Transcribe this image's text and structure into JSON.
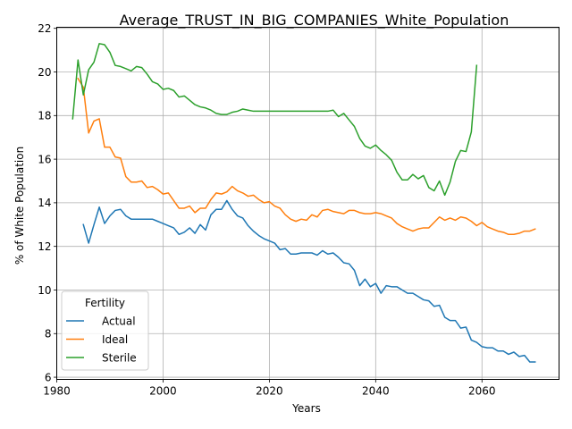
{
  "chart_data": {
    "type": "line",
    "title": "Average_TRUST_IN_BIG_COMPANIES_White_Population",
    "xlabel": "Years",
    "ylabel": "% of White Population",
    "xlim": [
      1980,
      2074.5
    ],
    "ylim": [
      5.9,
      22.05
    ],
    "xticks": [
      1980,
      2000,
      2020,
      2040,
      2060
    ],
    "yticks": [
      6,
      8,
      10,
      12,
      14,
      16,
      18,
      20,
      22
    ],
    "grid": true,
    "legend": {
      "title": "Fertility",
      "placement": "lower-left",
      "entries": [
        "Actual",
        "Ideal",
        "Sterile"
      ]
    },
    "series": [
      {
        "name": "Actual",
        "color": "#1f77b4",
        "x": [
          1985,
          1986,
          1987,
          1988,
          1989,
          1990,
          1991,
          1992,
          1993,
          1994,
          1995,
          1996,
          1997,
          1998,
          1999,
          2000,
          2001,
          2002,
          2003,
          2004,
          2005,
          2006,
          2007,
          2008,
          2009,
          2010,
          2011,
          2012,
          2013,
          2014,
          2015,
          2016,
          2017,
          2018,
          2019,
          2020,
          2021,
          2022,
          2023,
          2024,
          2025,
          2026,
          2027,
          2028,
          2029,
          2030,
          2031,
          2032,
          2033,
          2034,
          2035,
          2036,
          2037,
          2038,
          2039,
          2040,
          2041,
          2042,
          2043,
          2044,
          2045,
          2046,
          2047,
          2048,
          2049,
          2050,
          2051,
          2052,
          2053,
          2054,
          2055,
          2056,
          2057,
          2058,
          2059,
          2060,
          2061,
          2062,
          2063,
          2064,
          2065,
          2066,
          2067,
          2068,
          2069,
          2070
        ],
        "values": [
          13.0,
          12.15,
          13.0,
          13.8,
          13.05,
          13.4,
          13.65,
          13.7,
          13.4,
          13.25,
          13.25,
          13.25,
          13.25,
          13.25,
          13.15,
          13.05,
          12.95,
          12.85,
          12.55,
          12.65,
          12.85,
          12.6,
          13.0,
          12.75,
          13.45,
          13.7,
          13.7,
          14.1,
          13.7,
          13.4,
          13.3,
          12.95,
          12.7,
          12.5,
          12.35,
          12.25,
          12.15,
          11.85,
          11.9,
          11.65,
          11.65,
          11.7,
          11.7,
          11.7,
          11.6,
          11.8,
          11.65,
          11.7,
          11.5,
          11.25,
          11.2,
          10.9,
          10.2,
          10.5,
          10.15,
          10.3,
          9.85,
          10.2,
          10.15,
          10.15,
          10.0,
          9.85,
          9.85,
          9.7,
          9.55,
          9.5,
          9.25,
          9.3,
          8.75,
          8.6,
          8.6,
          8.25,
          8.3,
          7.7,
          7.6,
          7.4,
          7.35,
          7.35,
          7.2,
          7.2,
          7.05,
          7.15,
          6.95,
          7.0,
          6.7,
          6.7
        ]
      },
      {
        "name": "Ideal",
        "color": "#ff7f0e",
        "x": [
          1984,
          1985,
          1986,
          1987,
          1988,
          1989,
          1990,
          1991,
          1992,
          1993,
          1994,
          1995,
          1996,
          1997,
          1998,
          1999,
          2000,
          2001,
          2002,
          2003,
          2004,
          2005,
          2006,
          2007,
          2008,
          2009,
          2010,
          2011,
          2012,
          2013,
          2014,
          2015,
          2016,
          2017,
          2018,
          2019,
          2020,
          2021,
          2022,
          2023,
          2024,
          2025,
          2026,
          2027,
          2028,
          2029,
          2030,
          2031,
          2032,
          2033,
          2034,
          2035,
          2036,
          2037,
          2038,
          2039,
          2040,
          2041,
          2042,
          2043,
          2044,
          2045,
          2046,
          2047,
          2048,
          2049,
          2050,
          2051,
          2052,
          2053,
          2054,
          2055,
          2056,
          2057,
          2058,
          2059,
          2060,
          2061,
          2062,
          2063,
          2064,
          2065,
          2066,
          2067,
          2068,
          2069,
          2070
        ],
        "values": [
          19.7,
          19.3,
          17.2,
          17.75,
          17.85,
          16.55,
          16.55,
          16.1,
          16.05,
          15.2,
          14.95,
          14.95,
          15.0,
          14.7,
          14.75,
          14.6,
          14.4,
          14.45,
          14.1,
          13.75,
          13.75,
          13.85,
          13.55,
          13.75,
          13.75,
          14.15,
          14.45,
          14.4,
          14.5,
          14.75,
          14.55,
          14.45,
          14.3,
          14.35,
          14.15,
          14.0,
          14.05,
          13.85,
          13.75,
          13.45,
          13.25,
          13.15,
          13.25,
          13.2,
          13.45,
          13.35,
          13.65,
          13.7,
          13.6,
          13.55,
          13.5,
          13.65,
          13.65,
          13.55,
          13.5,
          13.5,
          13.55,
          13.5,
          13.4,
          13.3,
          13.05,
          12.9,
          12.8,
          12.7,
          12.8,
          12.85,
          12.85,
          13.1,
          13.35,
          13.2,
          13.3,
          13.2,
          13.35,
          13.3,
          13.15,
          12.95,
          13.1,
          12.9,
          12.8,
          12.7,
          12.65,
          12.55,
          12.55,
          12.6,
          12.7,
          12.7,
          12.8
        ]
      },
      {
        "name": "Sterile",
        "color": "#2ca02c",
        "x": [
          1983,
          1984,
          1985,
          1986,
          1987,
          1988,
          1989,
          1990,
          1991,
          1992,
          1993,
          1994,
          1995,
          1996,
          1997,
          1998,
          1999,
          2000,
          2001,
          2002,
          2003,
          2004,
          2005,
          2006,
          2007,
          2008,
          2009,
          2010,
          2011,
          2012,
          2013,
          2014,
          2015,
          2016,
          2017,
          2018,
          2019,
          2020,
          2021,
          2022,
          2023,
          2024,
          2025,
          2026,
          2027,
          2028,
          2029,
          2030,
          2031,
          2032,
          2033,
          2034,
          2035,
          2036,
          2037,
          2038,
          2039,
          2040,
          2041,
          2042,
          2043,
          2044,
          2045,
          2046,
          2047,
          2048,
          2049,
          2050,
          2051,
          2052,
          2053,
          2054,
          2055,
          2056,
          2057,
          2058,
          2059
        ],
        "values": [
          17.85,
          20.55,
          18.95,
          20.1,
          20.45,
          21.3,
          21.25,
          20.9,
          20.3,
          20.25,
          20.15,
          20.05,
          20.25,
          20.2,
          19.9,
          19.55,
          19.45,
          19.2,
          19.25,
          19.15,
          18.85,
          18.9,
          18.7,
          18.5,
          18.4,
          18.35,
          18.25,
          18.1,
          18.05,
          18.05,
          18.15,
          18.2,
          18.3,
          18.25,
          18.2,
          18.2,
          18.2,
          18.2,
          18.2,
          18.2,
          18.2,
          18.2,
          18.2,
          18.2,
          18.2,
          18.2,
          18.2,
          18.2,
          18.2,
          18.25,
          17.95,
          18.1,
          17.8,
          17.5,
          16.95,
          16.6,
          16.5,
          16.65,
          16.4,
          16.2,
          15.95,
          15.4,
          15.05,
          15.05,
          15.3,
          15.1,
          15.25,
          14.7,
          14.55,
          15.0,
          14.35,
          14.95,
          15.9,
          16.4,
          16.35,
          17.25,
          20.3
        ]
      }
    ]
  }
}
